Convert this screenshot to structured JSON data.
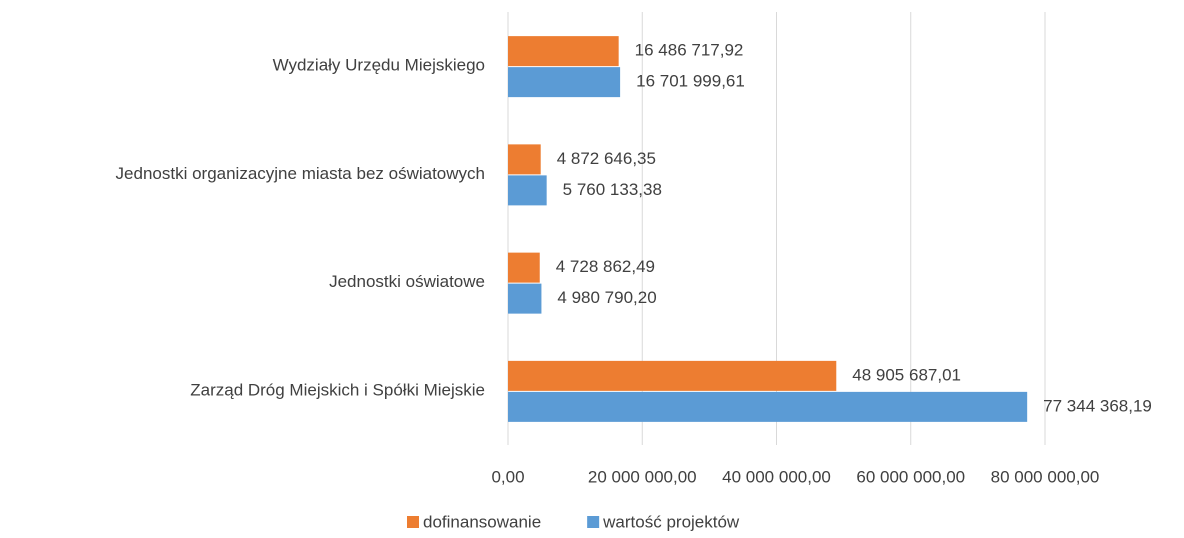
{
  "chart_data": {
    "type": "bar",
    "orientation": "horizontal",
    "categories": [
      "Wydziały Urzędu Miejskiego",
      "Jednostki organizacyjne miasta bez oświatowych",
      "Jednostki oświatowe",
      "Zarząd Dróg Miejskich i Spółki Miejskie"
    ],
    "series": [
      {
        "name": "dofinansowanie",
        "color": "#ED7D31",
        "values": [
          16486717.92,
          4872646.35,
          4728862.49,
          48905687.01
        ],
        "value_labels": [
          "16 486 717,92",
          "4 872 646,35",
          "4 728 862,49",
          "48 905 687,01"
        ]
      },
      {
        "name": "wartość projektów",
        "color": "#5B9BD5",
        "values": [
          16701999.61,
          5760133.38,
          4980790.2,
          77344368.19
        ],
        "value_labels": [
          "16 701 999,61",
          "5 760 133,38",
          "4 980 790,20",
          "77 344 368,19"
        ]
      }
    ],
    "xlim": [
      0,
      80000000
    ],
    "xticks": [
      {
        "value": 0,
        "label": "0,00"
      },
      {
        "value": 20000000,
        "label": "20 000 000,00"
      },
      {
        "value": 40000000,
        "label": "40 000 000,00"
      },
      {
        "value": 60000000,
        "label": "60 000 000,00"
      },
      {
        "value": 80000000,
        "label": "80 000 000,00"
      }
    ],
    "grid": true,
    "legend": "bottom"
  }
}
